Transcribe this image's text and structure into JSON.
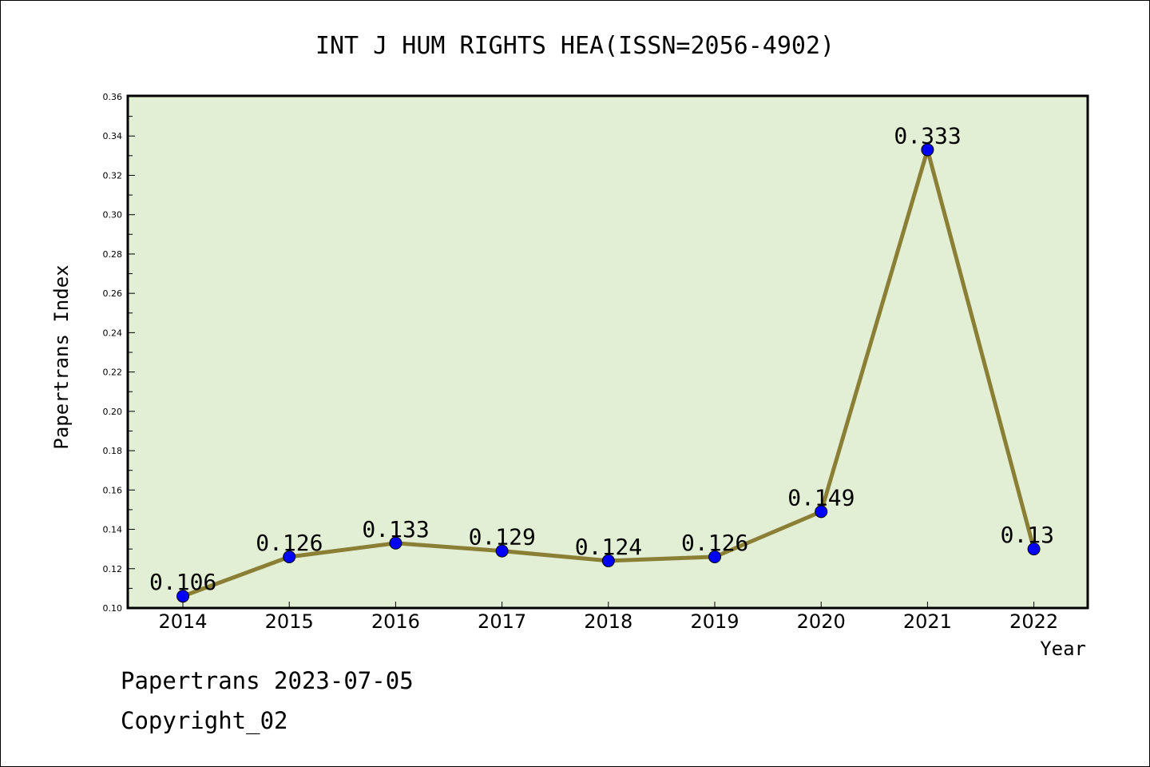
{
  "chart_data": {
    "type": "line",
    "title": "INT J HUM RIGHTS HEA(ISSN=2056-4902)",
    "xlabel": "Year",
    "ylabel": "Papertrans Index",
    "categories": [
      "2014",
      "2015",
      "2016",
      "2017",
      "2018",
      "2019",
      "2020",
      "2021",
      "2022"
    ],
    "values": [
      0.106,
      0.126,
      0.133,
      0.129,
      0.124,
      0.126,
      0.149,
      0.333,
      0.13
    ],
    "data_labels": [
      "0.106",
      "0.126",
      "0.133",
      "0.129",
      "0.124",
      "0.126",
      "0.149",
      "0.333",
      "0.13"
    ],
    "ylim": [
      0.1,
      0.36
    ],
    "yticks": [
      0.1,
      0.12,
      0.14,
      0.16,
      0.18,
      0.2,
      0.22,
      0.24,
      0.26,
      0.28,
      0.3,
      0.32,
      0.34,
      0.36
    ],
    "ytick_labels": [
      "0.10",
      "0.12",
      "0.14",
      "0.16",
      "0.18",
      "0.20",
      "0.22",
      "0.24",
      "0.26",
      "0.28",
      "0.30",
      "0.32",
      "0.34",
      "0.36"
    ],
    "grid": false,
    "legend": "none",
    "colors": {
      "plot_background": "#e2efd4",
      "line": "#8b7f35",
      "marker": "#0000ff"
    }
  },
  "footer": {
    "line1": "Papertrans 2023-07-05",
    "line2": "Copyright_02"
  }
}
